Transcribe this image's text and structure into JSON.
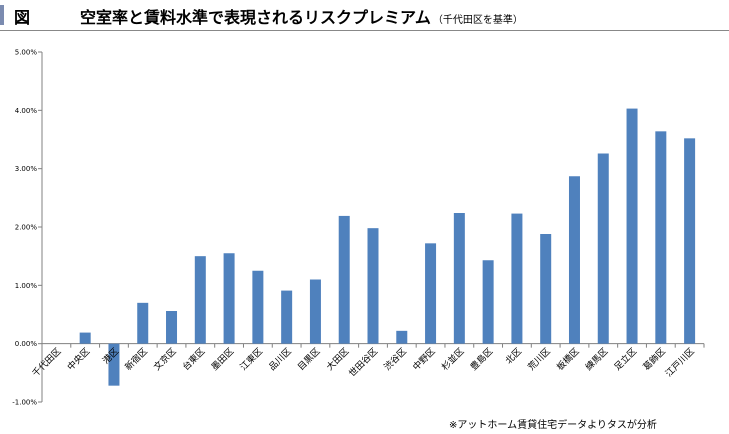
{
  "header": {
    "figure_label": "図",
    "title": "空室率と賃料水準で表現されるリスクプレミアム",
    "subtitle": "（千代田区を基準）"
  },
  "footnote": "※アットホーム賃貸住宅データよりタスが分析",
  "colors": {
    "bar": "#4f81bd",
    "axis": "#808080",
    "header_bar": "#7b8bb0"
  },
  "chart_data": {
    "type": "bar",
    "title": "空室率と賃料水準で表現されるリスクプレミアム",
    "xlabel": "",
    "ylabel": "",
    "ylim": [
      -1.0,
      5.0
    ],
    "yticks": [
      {
        "value": 5.0,
        "label": "5.00%"
      },
      {
        "value": 4.0,
        "label": "4.00%"
      },
      {
        "value": 3.0,
        "label": "3.00%"
      },
      {
        "value": 2.0,
        "label": "2.00%"
      },
      {
        "value": 1.0,
        "label": "1.00%"
      },
      {
        "value": 0.0,
        "label": "0.00%"
      },
      {
        "value": -1.0,
        "label": "-1.00%"
      }
    ],
    "grid": false,
    "legend": "none",
    "categories": [
      "千代田区",
      "中央区",
      "港区",
      "新宿区",
      "文京区",
      "台東区",
      "墨田区",
      "江東区",
      "品川区",
      "目黒区",
      "大田区",
      "世田谷区",
      "渋谷区",
      "中野区",
      "杉並区",
      "豊島区",
      "北区",
      "荒川区",
      "板橋区",
      "練馬区",
      "足立区",
      "葛飾区",
      "江戸川区"
    ],
    "values": [
      0.0,
      0.19,
      -0.72,
      0.7,
      0.56,
      1.5,
      1.55,
      1.25,
      0.91,
      1.1,
      2.19,
      1.98,
      0.22,
      1.72,
      2.24,
      1.43,
      2.23,
      1.88,
      2.87,
      3.26,
      4.03,
      3.64,
      3.52
    ]
  }
}
